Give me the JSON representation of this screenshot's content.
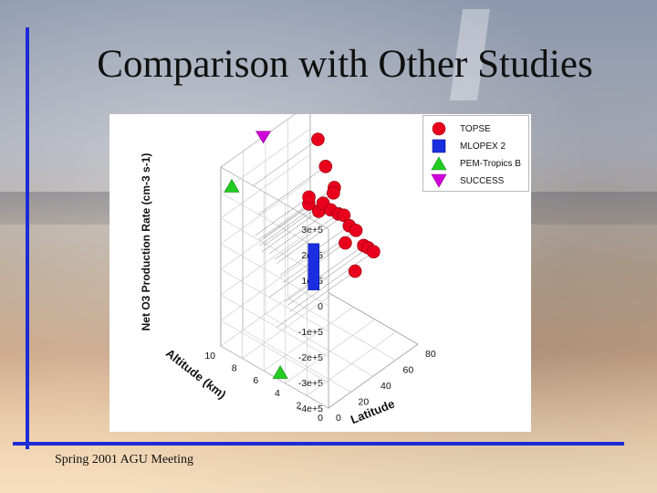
{
  "slide": {
    "title": "Comparison with Other Studies",
    "footer": "Spring 2001 AGU Meeting"
  },
  "chart_data": {
    "type": "scatter",
    "projection": "3d",
    "zlabel": "Net O3 Production Rate (cm-3 s-1)",
    "ylabel": "Altitude (km)",
    "xlabel": "Latitude",
    "z_ticks": [
      "3e+5",
      "2e+5",
      "1e+5",
      "0",
      "-1e+5",
      "-2e+5",
      "-3e+5",
      "-4e+5"
    ],
    "altitude_ticks": [
      "10",
      "8",
      "6",
      "4",
      "2",
      "0"
    ],
    "latitude_ticks": [
      "0",
      "20",
      "40",
      "60",
      "80"
    ],
    "zlim": [
      -400000,
      300000
    ],
    "xlim": [
      0,
      80
    ],
    "ylim": [
      0,
      10
    ],
    "grid": true,
    "legend_position": "top-right",
    "series": [
      {
        "name": "TOPSE",
        "marker": "circle",
        "color": "#e8001c",
        "points": [
          {
            "lat": 45,
            "alt": 6.5,
            "rate": 100000
          },
          {
            "lat": 48,
            "alt": 6.8,
            "rate": 110000
          },
          {
            "lat": 51,
            "alt": 6.2,
            "rate": 60000
          },
          {
            "lat": 53,
            "alt": 6.0,
            "rate": 90000
          },
          {
            "lat": 55,
            "alt": 5.5,
            "rate": 70000
          },
          {
            "lat": 57,
            "alt": 5.0,
            "rate": 60000
          },
          {
            "lat": 60,
            "alt": 4.8,
            "rate": 50000
          },
          {
            "lat": 62,
            "alt": 4.5,
            "rate": 10000
          },
          {
            "lat": 65,
            "alt": 4.2,
            "rate": -10000
          },
          {
            "lat": 70,
            "alt": 4.0,
            "rate": -80000
          },
          {
            "lat": 72,
            "alt": 3.8,
            "rate": -90000
          },
          {
            "lat": 75,
            "alt": 3.6,
            "rate": -110000
          },
          {
            "lat": 58,
            "alt": 7.0,
            "rate": 300000
          },
          {
            "lat": 60,
            "alt": 6.5,
            "rate": 200000
          },
          {
            "lat": 63,
            "alt": 6.0,
            "rate": 120000
          },
          {
            "lat": 66,
            "alt": 6.4,
            "rate": 80000
          },
          {
            "lat": 68,
            "alt": 5.5,
            "rate": -100000
          },
          {
            "lat": 70,
            "alt": 4.8,
            "rate": -200000
          }
        ]
      },
      {
        "name": "MLOPEX 2",
        "marker": "square",
        "color": "#1a2ee0",
        "points": [
          {
            "lat": 19.5,
            "alt": 3.4,
            "rate": 100000
          },
          {
            "lat": 19.5,
            "alt": 3.4,
            "rate": -60000
          }
        ]
      },
      {
        "name": "PEM-Tropics B",
        "marker": "triangle-up",
        "color": "#22cc22",
        "points": [
          {
            "lat": 5,
            "alt": 9.5,
            "rate": 220000
          },
          {
            "lat": 5,
            "alt": 5.0,
            "rate": -400000
          }
        ]
      },
      {
        "name": "SUCCESS",
        "marker": "triangle-down",
        "color": "#d000d8",
        "points": [
          {
            "lat": 38,
            "alt": 10,
            "rate": 300000
          }
        ]
      }
    ]
  }
}
